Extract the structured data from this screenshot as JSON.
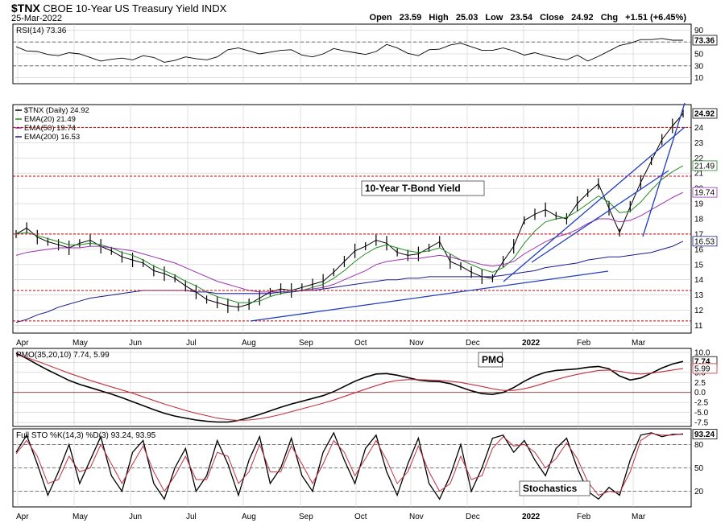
{
  "header": {
    "symbol": "$TNX",
    "name": "CBOE 10-Year US Treasury Yield INDX",
    "date": "25-Mar-2022",
    "open_label": "Open",
    "open": "23.59",
    "high_label": "High",
    "high": "25.03",
    "low_label": "Low",
    "low": "23.54",
    "close_label": "Close",
    "close": "24.92",
    "chg_label": "Chg",
    "chg": "+1.51 (+6.45%)"
  },
  "colors": {
    "price": "#000000",
    "ema20": "#228b22",
    "ema50": "#9b30b0",
    "ema200": "#1a1a8c",
    "trendline": "#1f3fbf",
    "support": "#c00000",
    "pmo_signal": "#c03040",
    "grid": "#cccccc"
  },
  "chart_data": [
    {
      "type": "line",
      "panel": "rsi",
      "legend": "RSI(14) 73.36",
      "y_ticks": [
        "90",
        "70",
        "50",
        "30",
        "10"
      ],
      "last_value_label": "73.36",
      "ylim": [
        0,
        100
      ],
      "reference_lines": [
        70,
        30
      ],
      "series": [
        {
          "values": [
            62,
            55,
            54,
            49,
            47,
            52,
            50,
            44,
            38,
            41,
            43,
            40,
            47,
            44,
            36,
            39,
            45,
            42,
            40,
            45,
            57,
            60,
            55,
            50,
            53,
            56,
            57,
            48,
            45,
            50,
            59,
            55,
            52,
            49,
            54,
            66,
            60,
            51,
            47,
            57,
            58,
            65,
            68,
            62,
            56,
            56,
            60,
            55,
            48,
            52,
            47,
            43,
            40,
            48,
            38,
            46,
            55,
            64,
            68,
            74,
            74,
            76,
            73,
            73
          ]
        }
      ]
    },
    {
      "type": "line",
      "panel": "price",
      "legend": [
        {
          "name": "$TNX (Daily) 24.92"
        },
        {
          "name": "EMA(20) 21.49"
        },
        {
          "name": "EMA(50) 19.74"
        },
        {
          "name": "EMA(200) 16.53"
        }
      ],
      "annotation": "10-Year T-Bond Yield",
      "y_ticks": [
        "24",
        "23",
        "22",
        "21",
        "20",
        "19",
        "18",
        "17",
        "16",
        "15",
        "14",
        "13",
        "12",
        "11"
      ],
      "last_value_labels": [
        "24.92",
        "21.49",
        "19.74",
        "16.53"
      ],
      "ylim": [
        10.5,
        25.5
      ],
      "horizontal_levels": [
        24,
        20.8,
        17,
        13.3,
        11.3
      ],
      "x_labels": [
        "Apr",
        "May",
        "Jun",
        "Jul",
        "Aug",
        "Sep",
        "Oct",
        "Nov",
        "Dec",
        "2022",
        "Feb",
        "Mar"
      ],
      "series": [
        {
          "name": "$TNX",
          "values": [
            17,
            17.4,
            16.8,
            16.5,
            16.3,
            16.1,
            16.4,
            16.6,
            16.2,
            15.9,
            15.5,
            15.3,
            15.1,
            14.6,
            14.4,
            14.1,
            13.6,
            13.2,
            12.7,
            12.5,
            12.3,
            12.2,
            12.4,
            12.8,
            13.2,
            13.4,
            13.3,
            13.5,
            13.7,
            13.9,
            14.5,
            15.2,
            15.9,
            16.2,
            16.6,
            16.4,
            15.8,
            15.6,
            15.7,
            16.1,
            16.5,
            15.2,
            14.9,
            14.5,
            14.2,
            14.1,
            15.2,
            16.2,
            17.9,
            18.3,
            18.6,
            18.2,
            18,
            19,
            19.7,
            20.3,
            18.7,
            17.1,
            18.8,
            20.4,
            21.8,
            23.2,
            24.1,
            24.92
          ]
        },
        {
          "name": "EMA(20)",
          "values": [
            17,
            17.1,
            16.9,
            16.7,
            16.5,
            16.3,
            16.3,
            16.4,
            16.3,
            16.1,
            15.8,
            15.6,
            15.3,
            14.9,
            14.6,
            14.3,
            13.9,
            13.6,
            13.2,
            12.9,
            12.7,
            12.5,
            12.5,
            12.6,
            12.9,
            13.1,
            13.2,
            13.3,
            13.5,
            13.7,
            14.1,
            14.6,
            15.2,
            15.7,
            16.1,
            16.3,
            16.1,
            15.9,
            15.8,
            15.9,
            16.1,
            15.7,
            15.3,
            15,
            14.7,
            14.5,
            14.8,
            15.4,
            16.4,
            17.2,
            17.8,
            18,
            18.1,
            18.5,
            19,
            19.5,
            19.1,
            18.4,
            18.5,
            19.1,
            19.9,
            20.6,
            21.1,
            21.49
          ]
        },
        {
          "name": "EMA(50)",
          "values": [
            15.6,
            15.8,
            15.9,
            16,
            16.1,
            16.1,
            16.1,
            16.2,
            16.2,
            16.1,
            16,
            15.9,
            15.7,
            15.5,
            15.3,
            15.1,
            14.8,
            14.5,
            14.2,
            13.9,
            13.7,
            13.5,
            13.3,
            13.2,
            13.2,
            13.2,
            13.2,
            13.3,
            13.4,
            13.5,
            13.7,
            14,
            14.3,
            14.6,
            15,
            15.2,
            15.3,
            15.4,
            15.4,
            15.5,
            15.6,
            15.5,
            15.3,
            15.2,
            15,
            14.9,
            15,
            15.2,
            15.7,
            16.1,
            16.5,
            16.8,
            17,
            17.3,
            17.7,
            18,
            18,
            17.8,
            17.9,
            18.2,
            18.6,
            19,
            19.4,
            19.74
          ]
        },
        {
          "name": "EMA(200)",
          "values": [
            11.2,
            11.4,
            11.7,
            11.9,
            12.2,
            12.4,
            12.6,
            12.8,
            12.9,
            13,
            13.1,
            13.2,
            13.3,
            13.3,
            13.3,
            13.3,
            13.3,
            13.2,
            13.2,
            13.1,
            13.1,
            13.1,
            13.1,
            13.1,
            13.1,
            13.2,
            13.2,
            13.3,
            13.3,
            13.4,
            13.5,
            13.6,
            13.7,
            13.8,
            13.9,
            14,
            14,
            14.1,
            14.1,
            14.2,
            14.2,
            14.2,
            14.2,
            14.2,
            14.2,
            14.2,
            14.3,
            14.4,
            14.5,
            14.6,
            14.8,
            14.9,
            15,
            15.1,
            15.3,
            15.4,
            15.5,
            15.5,
            15.6,
            15.7,
            15.8,
            16,
            16.2,
            16.53
          ]
        }
      ]
    },
    {
      "type": "line",
      "panel": "pmo",
      "legend": "PMO(35,20,10) 7.74, 5.99",
      "annotation": "PMO",
      "y_ticks": [
        "10.0",
        "7.5",
        "5.0",
        "2.5",
        "0.0",
        "-2.5",
        "-5.0",
        "-7.5"
      ],
      "last_value_labels": [
        "7.74",
        "5.99"
      ],
      "ylim": [
        -8.5,
        11
      ],
      "reference_lines": [
        0
      ],
      "series": [
        {
          "values": [
            9.8,
            8.5,
            7,
            5.6,
            4.3,
            3,
            2,
            1.2,
            0.4,
            -0.4,
            -1.3,
            -2.3,
            -3.3,
            -4.3,
            -5.2,
            -5.9,
            -6.4,
            -6.9,
            -7.2,
            -7.4,
            -7.4,
            -7,
            -6.3,
            -5.5,
            -4.6,
            -3.7,
            -2.9,
            -2.2,
            -1.5,
            -0.8,
            0.2,
            1.5,
            2.8,
            3.8,
            4.6,
            4.7,
            4.3,
            3.7,
            3.1,
            2.8,
            2.7,
            2.2,
            1.3,
            0.4,
            -0.3,
            -0.5,
            0,
            1.2,
            2.8,
            4.1,
            5,
            5.5,
            5.7,
            5.9,
            6.3,
            6.5,
            5.9,
            4.1,
            3.1,
            3.6,
            4.8,
            6.1,
            7.1,
            7.74
          ]
        },
        {
          "values": [
            9.4,
            8.7,
            7.8,
            6.8,
            5.8,
            4.8,
            3.9,
            3,
            2.2,
            1.4,
            0.6,
            -0.2,
            -1.1,
            -2,
            -2.9,
            -3.7,
            -4.5,
            -5.2,
            -5.8,
            -6.4,
            -6.8,
            -7,
            -6.9,
            -6.6,
            -6.1,
            -5.5,
            -4.8,
            -4.1,
            -3.4,
            -2.7,
            -1.9,
            -1,
            -0.1,
            0.8,
            1.7,
            2.5,
            3,
            3.2,
            3.2,
            3.1,
            3,
            2.8,
            2.5,
            2,
            1.5,
            0.9,
            0.5,
            0.5,
            0.9,
            1.6,
            2.4,
            3.2,
            3.9,
            4.5,
            5,
            5.5,
            5.6,
            5.3,
            4.8,
            4.6,
            4.8,
            5.2,
            5.6,
            5.99
          ]
        }
      ]
    },
    {
      "type": "line",
      "panel": "stochastics",
      "legend": "Full STO %K(14,3) %D(3) 93.24, 93.95",
      "annotation": "Stochastics",
      "y_ticks": [
        "80",
        "50",
        "20"
      ],
      "last_value_label": "93.24",
      "ylim": [
        0,
        100
      ],
      "reference_lines": [
        80,
        50,
        20
      ],
      "x_labels": [
        "Apr",
        "May",
        "Jun",
        "Jul",
        "Aug",
        "Sep",
        "Oct",
        "Nov",
        "Dec",
        "2022",
        "Feb",
        "Mar"
      ],
      "series": [
        {
          "values": [
            70,
            92,
            55,
            15,
            45,
            80,
            30,
            60,
            90,
            40,
            20,
            70,
            85,
            30,
            10,
            50,
            75,
            20,
            40,
            85,
            55,
            15,
            60,
            90,
            30,
            50,
            88,
            40,
            20,
            70,
            95,
            60,
            30,
            75,
            92,
            45,
            15,
            55,
            88,
            30,
            10,
            40,
            80,
            20,
            50,
            88,
            92,
            70,
            85,
            60,
            40,
            75,
            88,
            50,
            20,
            10,
            25,
            15,
            60,
            92,
            95,
            90,
            93,
            93.24
          ]
        },
        {
          "values": [
            68,
            85,
            65,
            30,
            35,
            65,
            45,
            50,
            80,
            55,
            30,
            55,
            78,
            45,
            20,
            40,
            65,
            35,
            35,
            70,
            65,
            30,
            45,
            80,
            45,
            45,
            78,
            55,
            30,
            55,
            85,
            70,
            40,
            62,
            85,
            60,
            30,
            45,
            78,
            45,
            20,
            30,
            65,
            35,
            40,
            75,
            90,
            78,
            80,
            70,
            50,
            62,
            82,
            62,
            32,
            15,
            20,
            18,
            45,
            85,
            94,
            92,
            92,
            93.95
          ]
        }
      ]
    }
  ]
}
